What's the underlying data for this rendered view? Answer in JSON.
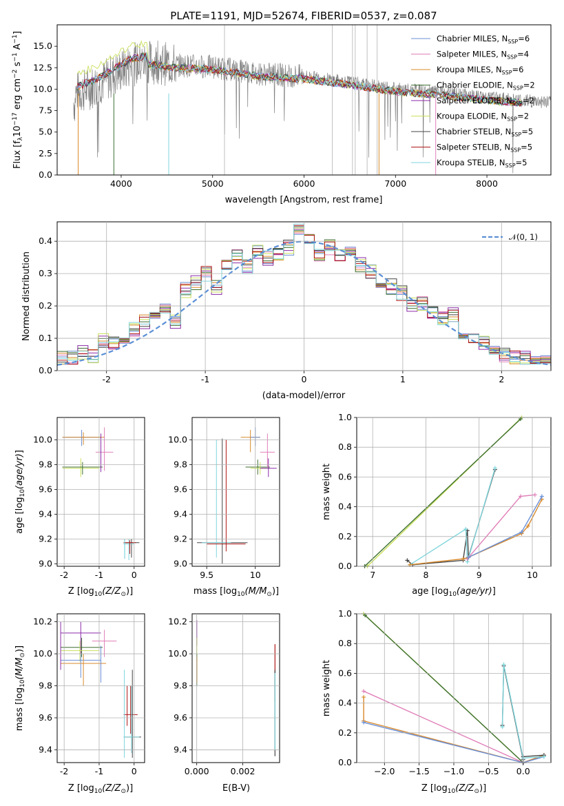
{
  "palette": {
    "chabrier_miles": "#6a8fd6",
    "salpeter_miles": "#e07fb8",
    "kroupa_miles": "#d8892a",
    "chabrier_elodie": "#3c6e2f",
    "salpeter_elodie": "#8a2aa8",
    "kroupa_elodie": "#c8e05a",
    "chabrier_stelib": "#444444",
    "salpeter_stelib": "#b01414",
    "kroupa_stelib": "#7fd6dc",
    "data": "#808080",
    "gauss": "#5b8fd6"
  },
  "chart_data": [
    {
      "type": "line",
      "title": "PLATE=1191, MJD=52674, FIBERID=0537, z=0.087",
      "xlabel": "wavelength [Angstrom, rest frame]",
      "ylabel": "Flux [f_λ 10^-17 erg cm^-2 s^-1 A^-1]",
      "xlim": [
        3300,
        8700
      ],
      "ylim": [
        0,
        17.5
      ],
      "xticks": [
        4000,
        5000,
        6000,
        7000,
        8000
      ],
      "yticks": [
        0.0,
        2.5,
        5.0,
        7.5,
        10.0,
        12.5,
        15.0
      ],
      "ytick_labels": [
        "0.0",
        "2.5",
        "5.0",
        "7.5",
        "10.0",
        "12.5",
        "15.0"
      ],
      "legend": "top-right",
      "legend_entries": [
        "Chabrier MILES, N_SSP=6",
        "Salpeter MILES, N_SSP=4",
        "Kroupa MILES, N_SSP=6",
        "Chabrier ELODIE, N_SSP=2",
        "Salpeter ELODIE, N_SSP=2",
        "Kroupa ELODIE, N_SSP=2",
        "Chabrier STELIB, N_SSP=5",
        "Salpeter STELIB, N_SSP=5",
        "Kroupa STELIB, N_SSP=5"
      ],
      "data_envelope": {
        "x": [
          3500,
          3700,
          3900,
          4100,
          4300,
          4600,
          5000,
          5500,
          6000,
          6500,
          7000,
          7500,
          8000,
          8500,
          8700
        ],
        "y": [
          9.5,
          10.3,
          11.5,
          12.8,
          13.2,
          12.8,
          12.6,
          11.8,
          11.5,
          10.8,
          10.0,
          9.6,
          9.0,
          8.6,
          8.5
        ]
      }
    },
    {
      "type": "line",
      "xlabel": "(data-model)/error",
      "ylabel": "Normed distribution",
      "xlim": [
        -2.5,
        2.5
      ],
      "ylim": [
        0,
        0.46
      ],
      "xticks": [
        -2,
        -1,
        0,
        1,
        2
      ],
      "yticks": [
        0.0,
        0.1,
        0.2,
        0.3,
        0.4
      ],
      "ytick_labels": [
        "0.0",
        "0.1",
        "0.2",
        "0.3",
        "0.4"
      ],
      "legend": "top-right",
      "legend_entries": [
        "𝒩(0, 1)"
      ],
      "series": [
        {
          "values": [
            0.035,
            0.04,
            0.055,
            0.045,
            0.09,
            0.085,
            0.1,
            0.13,
            0.15,
            0.17,
            0.2,
            0.15,
            0.25,
            0.27,
            0.3,
            0.26,
            0.32,
            0.35,
            0.32,
            0.37,
            0.35,
            0.36,
            0.38,
            0.43,
            0.4,
            0.36,
            0.38,
            0.35,
            0.37,
            0.33,
            0.31,
            0.28,
            0.26,
            0.24,
            0.2,
            0.21,
            0.18,
            0.16,
            0.17,
            0.12,
            0.1,
            0.09,
            0.07,
            0.05,
            0.045,
            0.035,
            0.03,
            0.03
          ]
        }
      ]
    },
    {
      "type": "scatter",
      "xlabel": "Z [log10(Z/Z⊙)]",
      "ylabel": "age  [log10(age/yr)]",
      "xlim": [
        -2.2,
        0.3
      ],
      "ylim": [
        8.98,
        10.18
      ],
      "xticks": [
        -2,
        -1,
        0
      ],
      "yticks": [
        9.0,
        9.2,
        9.4,
        9.6,
        9.8,
        10.0
      ],
      "ytick_labels": [
        "9.0",
        "9.2",
        "9.4",
        "9.6",
        "9.8",
        "10.0"
      ]
    },
    {
      "type": "scatter",
      "xlabel": "mass [log10(M/M⊙)]",
      "ylabel": "",
      "xlim": [
        9.35,
        10.25
      ],
      "ylim": [
        8.98,
        10.18
      ],
      "xticks": [
        9.5,
        10.0
      ],
      "yticks": [
        9.0,
        9.2,
        9.4,
        9.6,
        9.8,
        10.0
      ],
      "ytick_labels": [
        "9.0",
        "9.2",
        "9.4",
        "9.6",
        "9.8",
        "10.0"
      ]
    },
    {
      "type": "line",
      "xlabel": "age  [log10(age/yr)]",
      "ylabel": "mass weight",
      "xlim": [
        6.7,
        10.35
      ],
      "ylim": [
        0,
        1.0
      ],
      "xticks": [
        7,
        8,
        9,
        10
      ],
      "yticks": [
        0.0,
        0.2,
        0.4,
        0.6,
        0.8,
        1.0
      ],
      "ytick_labels": [
        "0.0",
        "0.2",
        "0.4",
        "0.6",
        "0.8",
        "1.0"
      ],
      "series": [
        {
          "x": [
            6.9,
            9.8
          ],
          "y": [
            0.0,
            1.0
          ]
        },
        {
          "x": [
            6.85,
            9.78
          ],
          "y": [
            0.0,
            0.99
          ]
        },
        {
          "x": [
            7.65,
            7.75,
            8.7,
            8.78,
            8.8,
            9.3
          ],
          "y": [
            0.04,
            0.01,
            0.04,
            0.24,
            0.06,
            0.65
          ]
        },
        {
          "x": [
            7.7,
            8.75,
            8.78,
            9.3
          ],
          "y": [
            0.01,
            0.25,
            0.03,
            0.66
          ]
        },
        {
          "x": [
            8.78,
            9.78,
            10.05
          ],
          "y": [
            0.05,
            0.47,
            0.48
          ]
        },
        {
          "x": [
            7.7,
            8.7,
            8.8,
            9.8,
            9.92,
            10.18
          ],
          "y": [
            0.01,
            0.05,
            0.06,
            0.22,
            0.27,
            0.45
          ]
        },
        {
          "x": [
            8.8,
            9.8,
            10.18
          ],
          "y": [
            0.06,
            0.23,
            0.47
          ]
        }
      ]
    },
    {
      "type": "scatter",
      "xlabel": "Z [log10(Z/Z⊙)]",
      "ylabel": "mass [log10(M/M⊙)]",
      "xlim": [
        -2.2,
        0.3
      ],
      "ylim": [
        9.32,
        10.25
      ],
      "xticks": [
        -2,
        -1,
        0
      ],
      "yticks": [
        9.4,
        9.6,
        9.8,
        10.0,
        10.2
      ],
      "ytick_labels": [
        "9.4",
        "9.6",
        "9.8",
        "10.0",
        "10.2"
      ]
    },
    {
      "type": "scatter",
      "xlabel": "E(B-V)",
      "ylabel": "",
      "xlim": [
        -0.0002,
        0.0036
      ],
      "ylim": [
        9.32,
        10.25
      ],
      "xticks": [
        0.0,
        0.002
      ],
      "xtick_labels": [
        "0.000",
        "0.002"
      ],
      "yticks": [
        9.4,
        9.6,
        9.8,
        10.0,
        10.2
      ],
      "ytick_labels": [
        "9.4",
        "9.6",
        "9.8",
        "10.0",
        "10.2"
      ]
    },
    {
      "type": "line",
      "xlabel": "Z [log10(Z/Z⊙)]",
      "ylabel": "mass weight",
      "xlim": [
        -2.4,
        0.4
      ],
      "ylim": [
        0,
        1.0
      ],
      "xticks": [
        -2.0,
        -1.5,
        -1.0,
        -0.5,
        0.0
      ],
      "xtick_labels": [
        "−2.0",
        "−1.5",
        "−1.0",
        "−0.5",
        "0.0"
      ],
      "yticks": [
        0.0,
        0.2,
        0.4,
        0.6,
        0.8,
        1.0
      ],
      "ytick_labels": [
        "0.0",
        "0.2",
        "0.4",
        "0.6",
        "0.8",
        "1.0"
      ],
      "series": [
        {
          "x": [
            -2.3,
            0.0
          ],
          "y": [
            1.0,
            0.0
          ]
        },
        {
          "x": [
            -2.28,
            0.0
          ],
          "y": [
            0.99,
            0.0
          ]
        },
        {
          "x": [
            -2.3,
            0.0,
            0.3
          ],
          "y": [
            0.48,
            0.0,
            0.05
          ]
        },
        {
          "x": [
            -2.3,
            -2.3,
            0.0,
            0.3
          ],
          "y": [
            0.44,
            0.28,
            0.0,
            0.05
          ]
        },
        {
          "x": [
            -2.3,
            0.0,
            0.3
          ],
          "y": [
            0.27,
            0.0,
            0.04
          ]
        },
        {
          "x": [
            -0.3,
            -0.28,
            0.0,
            0.0,
            0.3
          ],
          "y": [
            0.25,
            0.65,
            0.02,
            0.04,
            0.05
          ]
        },
        {
          "x": [
            -0.3,
            -0.28,
            0.0,
            0.3
          ],
          "y": [
            0.24,
            0.66,
            0.03,
            0.04
          ]
        }
      ]
    }
  ]
}
